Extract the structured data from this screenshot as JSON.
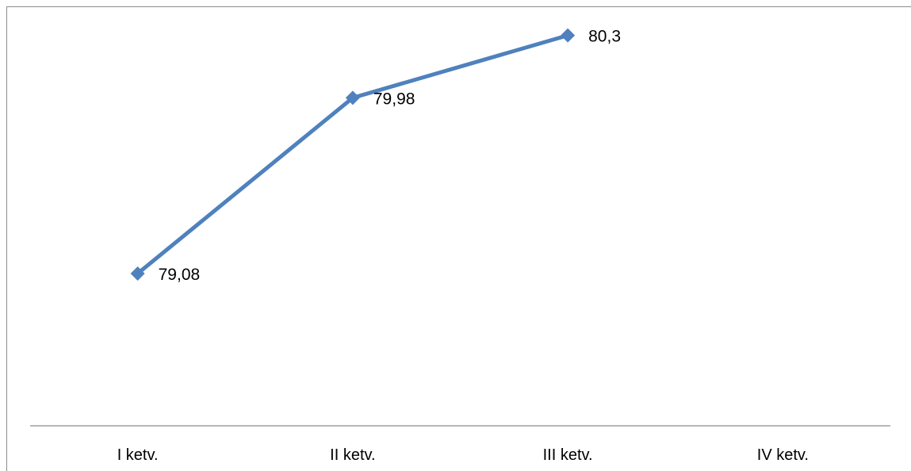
{
  "chart_data": {
    "type": "line",
    "title": "",
    "xlabel": "",
    "ylabel": "",
    "categories": [
      "I ketv.",
      "II ketv.",
      "III ketv.",
      "IV ketv."
    ],
    "series": [
      {
        "values": [
          79.08,
          79.98,
          80.3,
          null
        ],
        "data_labels": [
          "79,08",
          "79,98",
          "80,3",
          ""
        ],
        "color": "#4f81bd",
        "marker": "diamond"
      }
    ],
    "ylim": [
      78.3,
      80.4
    ],
    "grid": false,
    "legend": "none"
  }
}
